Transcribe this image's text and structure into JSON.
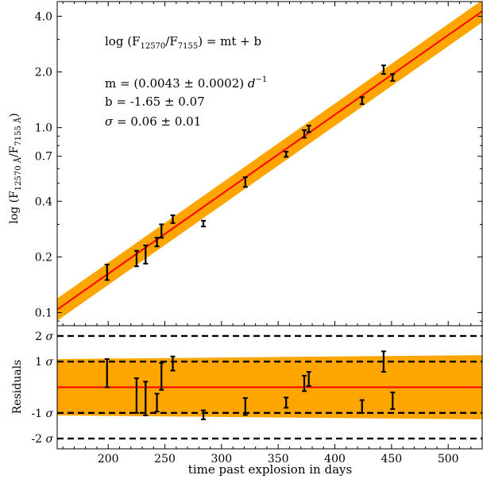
{
  "chart_data": [
    {
      "type": "line",
      "panel": "main",
      "xlabel": "time past explosion in days",
      "ylabel": "log (F12570 Å/F7155 Å)",
      "ylabel_parts": {
        "prefix": "log (F",
        "sub1": "12570 Å",
        "mid": "/F",
        "sub2": "7155 Å",
        "suffix": ")"
      },
      "xlim": [
        155,
        530
      ],
      "ylim": [
        0.085,
        4.8
      ],
      "y_scale": "log",
      "x_ticks": [
        200,
        250,
        300,
        350,
        400,
        450,
        500
      ],
      "y_ticks": [
        0.1,
        0.2,
        0.4,
        0.7,
        1.0,
        2.0,
        4.0
      ],
      "y_tick_labels": [
        "0.1",
        "0.2",
        "0.4",
        "0.7",
        "1.0",
        "2.0",
        "4.0"
      ],
      "annotations": {
        "equation": "log (F12570/F7155) = mt + b",
        "eq_parts": {
          "prefix": "log (F",
          "sub1": "12570",
          "mid": "/F",
          "sub2": "7155",
          "suffix": ") = mt + b"
        },
        "m": "m = (0.0043 ± 0.0002) d−1",
        "m_parts": {
          "prefix": "m = (0.0043 ± 0.0002) ",
          "unit": "d",
          "sup": "−1"
        },
        "b": "b = -1.65 ± 0.07",
        "sigma": "σ = 0.06 ± 0.01",
        "sigma_parts": {
          "sym": "σ",
          "rest": " = 0.06 ± 0.01"
        }
      },
      "series": [
        {
          "fit": {
            "slope": 0.0043,
            "intercept": -1.65
          },
          "band_halfwidth_log": 0.06,
          "line_color": "#ff0000",
          "band_color": "#ffa500"
        },
        {
          "points": [
            {
              "x": 199,
              "y": 0.165,
              "ylo": 0.15,
              "yhi": 0.182
            },
            {
              "x": 225,
              "y": 0.196,
              "ylo": 0.178,
              "yhi": 0.216
            },
            {
              "x": 233,
              "y": 0.206,
              "ylo": 0.184,
              "yhi": 0.231
            },
            {
              "x": 243,
              "y": 0.24,
              "ylo": 0.228,
              "yhi": 0.254
            },
            {
              "x": 247,
              "y": 0.275,
              "ylo": 0.254,
              "yhi": 0.3
            },
            {
              "x": 257,
              "y": 0.32,
              "ylo": 0.305,
              "yhi": 0.336
            },
            {
              "x": 284,
              "y": 0.302,
              "ylo": 0.292,
              "yhi": 0.314
            },
            {
              "x": 321,
              "y": 0.508,
              "ylo": 0.478,
              "yhi": 0.54
            },
            {
              "x": 357,
              "y": 0.718,
              "ylo": 0.695,
              "yhi": 0.742
            },
            {
              "x": 373,
              "y": 0.925,
              "ylo": 0.882,
              "yhi": 0.97
            },
            {
              "x": 377,
              "y": 0.985,
              "ylo": 0.945,
              "yhi": 1.025
            },
            {
              "x": 424,
              "y": 1.4,
              "ylo": 1.34,
              "yhi": 1.46
            },
            {
              "x": 443,
              "y": 2.05,
              "ylo": 1.95,
              "yhi": 2.17
            },
            {
              "x": 451,
              "y": 1.87,
              "ylo": 1.79,
              "yhi": 1.95
            }
          ]
        }
      ]
    },
    {
      "type": "scatter",
      "panel": "residuals",
      "ylabel": "Residuals",
      "xlim": [
        155,
        530
      ],
      "ylim": [
        -2.4,
        2.4
      ],
      "y_ticks": [
        -2,
        -1,
        1,
        2
      ],
      "y_tick_labels": [
        "-2 σ",
        "-1 σ",
        "1 σ",
        "2 σ"
      ],
      "x_tick_labels": [
        "200",
        "250",
        "300",
        "350",
        "400",
        "450",
        "500"
      ],
      "sigma_lines": [
        -2,
        -1,
        1,
        2
      ],
      "series": [
        {
          "band": {
            "at_x_min": [
              -1.1,
              1.1
            ],
            "at_x_max": [
              -1.25,
              1.25
            ]
          },
          "zero_line": 0,
          "line_color": "#ff0000",
          "band_color": "#ffa500"
        },
        {
          "points": [
            {
              "x": 199,
              "y": 0.5,
              "ylo": 0.0,
              "yhi": 1.1
            },
            {
              "x": 225,
              "y": -0.32,
              "ylo": -1.0,
              "yhi": 0.35
            },
            {
              "x": 233,
              "y": -0.45,
              "ylo": -1.1,
              "yhi": 0.22
            },
            {
              "x": 243,
              "y": -0.6,
              "ylo": -0.95,
              "yhi": -0.25
            },
            {
              "x": 247,
              "y": 0.4,
              "ylo": -0.1,
              "yhi": 0.95
            },
            {
              "x": 257,
              "y": 0.92,
              "ylo": 0.65,
              "yhi": 1.2
            },
            {
              "x": 284,
              "y": -1.08,
              "ylo": -1.25,
              "yhi": -0.9
            },
            {
              "x": 321,
              "y": -0.75,
              "ylo": -1.08,
              "yhi": -0.42
            },
            {
              "x": 357,
              "y": -0.6,
              "ylo": -0.8,
              "yhi": -0.4
            },
            {
              "x": 373,
              "y": 0.15,
              "ylo": -0.15,
              "yhi": 0.45
            },
            {
              "x": 377,
              "y": 0.32,
              "ylo": 0.05,
              "yhi": 0.6
            },
            {
              "x": 424,
              "y": -0.75,
              "ylo": -1.0,
              "yhi": -0.5
            },
            {
              "x": 443,
              "y": 1.0,
              "ylo": 0.6,
              "yhi": 1.4
            },
            {
              "x": 451,
              "y": -0.55,
              "ylo": -0.85,
              "yhi": -0.2
            }
          ]
        }
      ]
    }
  ]
}
